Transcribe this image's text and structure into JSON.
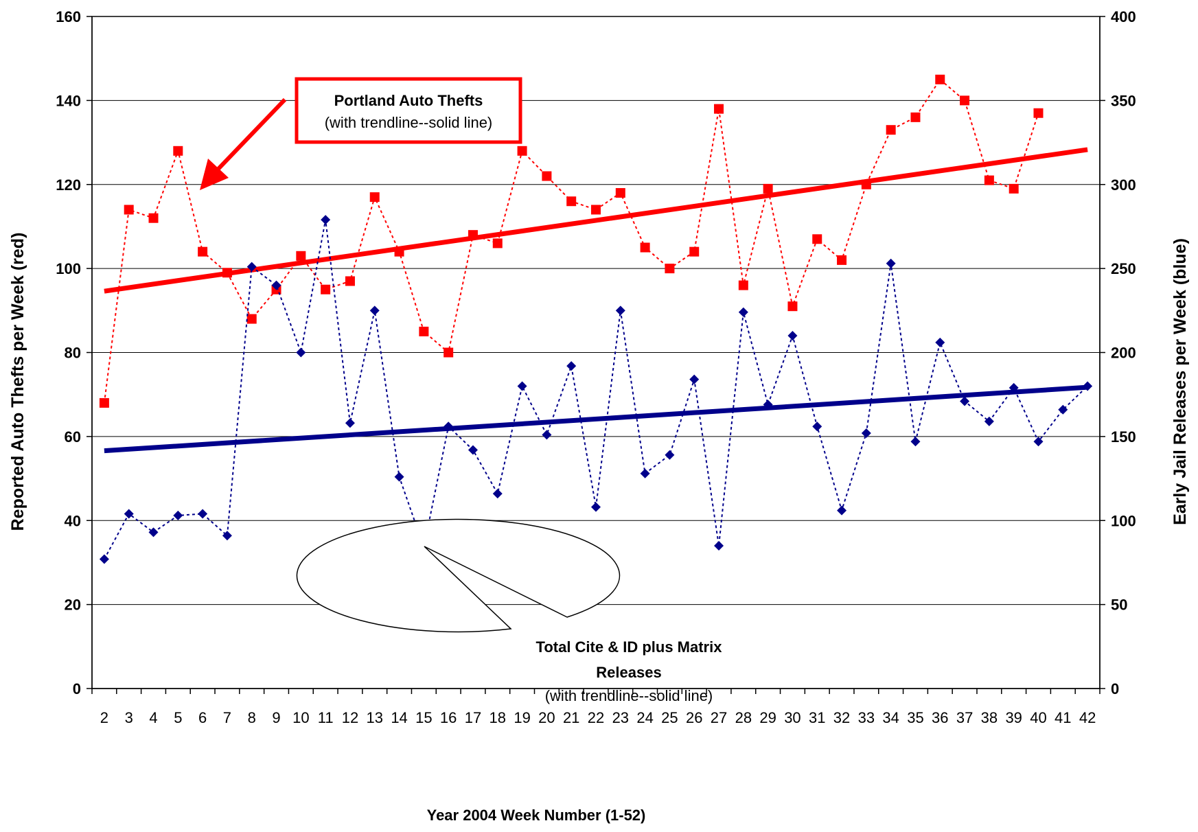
{
  "chart_data": {
    "type": "line",
    "title": "",
    "xlabel": "Year 2004 Week Number (1-52)",
    "ylabel_left": "Reported Auto Thefts per Week (red)",
    "ylabel_right": "Early Jail Releases per Week (blue)",
    "ylim_left": [
      0,
      160
    ],
    "ylim_right": [
      0,
      400
    ],
    "yticks_left": [
      0,
      20,
      40,
      60,
      80,
      100,
      120,
      140,
      160
    ],
    "yticks_right": [
      0,
      50,
      100,
      150,
      200,
      250,
      300,
      350,
      400
    ],
    "grid": true,
    "x": [
      2,
      3,
      4,
      5,
      6,
      7,
      8,
      9,
      10,
      11,
      12,
      13,
      14,
      15,
      16,
      17,
      18,
      19,
      20,
      21,
      22,
      23,
      24,
      25,
      26,
      27,
      28,
      29,
      30,
      31,
      32,
      33,
      34,
      35,
      36,
      37,
      38,
      39,
      40,
      41,
      42
    ],
    "series": [
      {
        "axis": "left",
        "color": "#ff0000",
        "marker": "square",
        "values": [
          68,
          114,
          112,
          128,
          104,
          99,
          88,
          95,
          103,
          95,
          97,
          117,
          104,
          85,
          80,
          108,
          106,
          128,
          122,
          116,
          114,
          118,
          105,
          100,
          104,
          138,
          96,
          119,
          91,
          107,
          102,
          120,
          133,
          136,
          145,
          140,
          121,
          119,
          137,
          null,
          null
        ],
        "trendline": [
          94.6,
          128.3
        ]
      },
      {
        "axis": "right",
        "color": "#00008b",
        "marker": "diamond",
        "values": [
          77,
          104,
          93,
          103,
          104,
          91,
          251,
          240,
          200,
          279,
          158,
          225,
          126,
          84,
          156,
          142,
          116,
          180,
          151,
          192,
          108,
          225,
          128,
          139,
          184,
          85,
          224,
          169,
          210,
          156,
          106,
          152,
          253,
          147,
          206,
          171,
          159,
          179,
          147,
          166,
          180
        ],
        "trendline": [
          141.5,
          179.3
        ]
      }
    ],
    "annotations": [
      {
        "title": "Portland Auto Thefts",
        "subtitle": "(with trendline--solid line)"
      },
      {
        "title_line1": "Total Cite & ID plus Matrix",
        "title_line2": "Releases",
        "subtitle": "(with trendline--solid line)"
      }
    ]
  }
}
